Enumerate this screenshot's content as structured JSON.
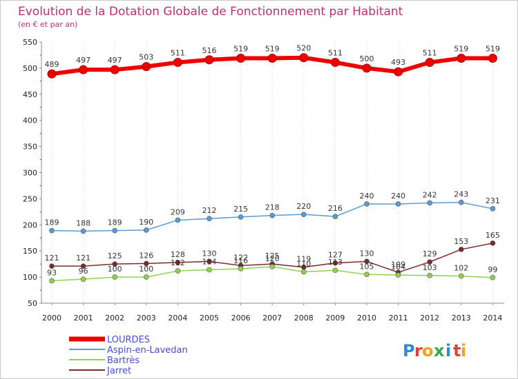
{
  "chart_data": {
    "type": "line",
    "title": "Evolution de la Dotation Globale de Fonctionnement par Habitant",
    "subtitle": "(en € et par an)",
    "x": [
      "2000",
      "2001",
      "2002",
      "2003",
      "2004",
      "2005",
      "2006",
      "2007",
      "2008",
      "2009",
      "2010",
      "2011",
      "2012",
      "2013",
      "2014"
    ],
    "ylim": [
      50,
      550
    ],
    "yticks": [
      50,
      100,
      150,
      200,
      250,
      300,
      350,
      400,
      450,
      500,
      550
    ],
    "grid": "vertical",
    "legend_position": "bottom-left",
    "series": [
      {
        "name": "LOURDES",
        "color": "#ee0000",
        "values": [
          489,
          497,
          497,
          503,
          511,
          516,
          519,
          519,
          520,
          511,
          500,
          493,
          511,
          519,
          519
        ]
      },
      {
        "name": "Aspin-en-Lavedan",
        "color": "#5b9bd5",
        "values": [
          189,
          188,
          189,
          190,
          209,
          212,
          215,
          218,
          220,
          216,
          240,
          240,
          242,
          243,
          231
        ]
      },
      {
        "name": "Bartrès",
        "color": "#8fd14f",
        "values": [
          93,
          96,
          100,
          100,
          112,
          114,
          116,
          120,
          110,
          113,
          105,
          104,
          103,
          102,
          99
        ]
      },
      {
        "name": "Jarret",
        "color": "#7a2a2a",
        "values": [
          121,
          121,
          125,
          126,
          128,
          130,
          122,
          125,
          119,
          127,
          130,
          109,
          129,
          153,
          165
        ]
      }
    ]
  },
  "brand": {
    "letters": [
      "P",
      "r",
      "o",
      "x",
      "i",
      "t",
      "i"
    ],
    "colors": [
      "#2e8bd8",
      "#e23d3d",
      "#f0a020",
      "#3aa84a",
      "#2e8bd8",
      "#e23d3d",
      "#f0a020"
    ]
  }
}
